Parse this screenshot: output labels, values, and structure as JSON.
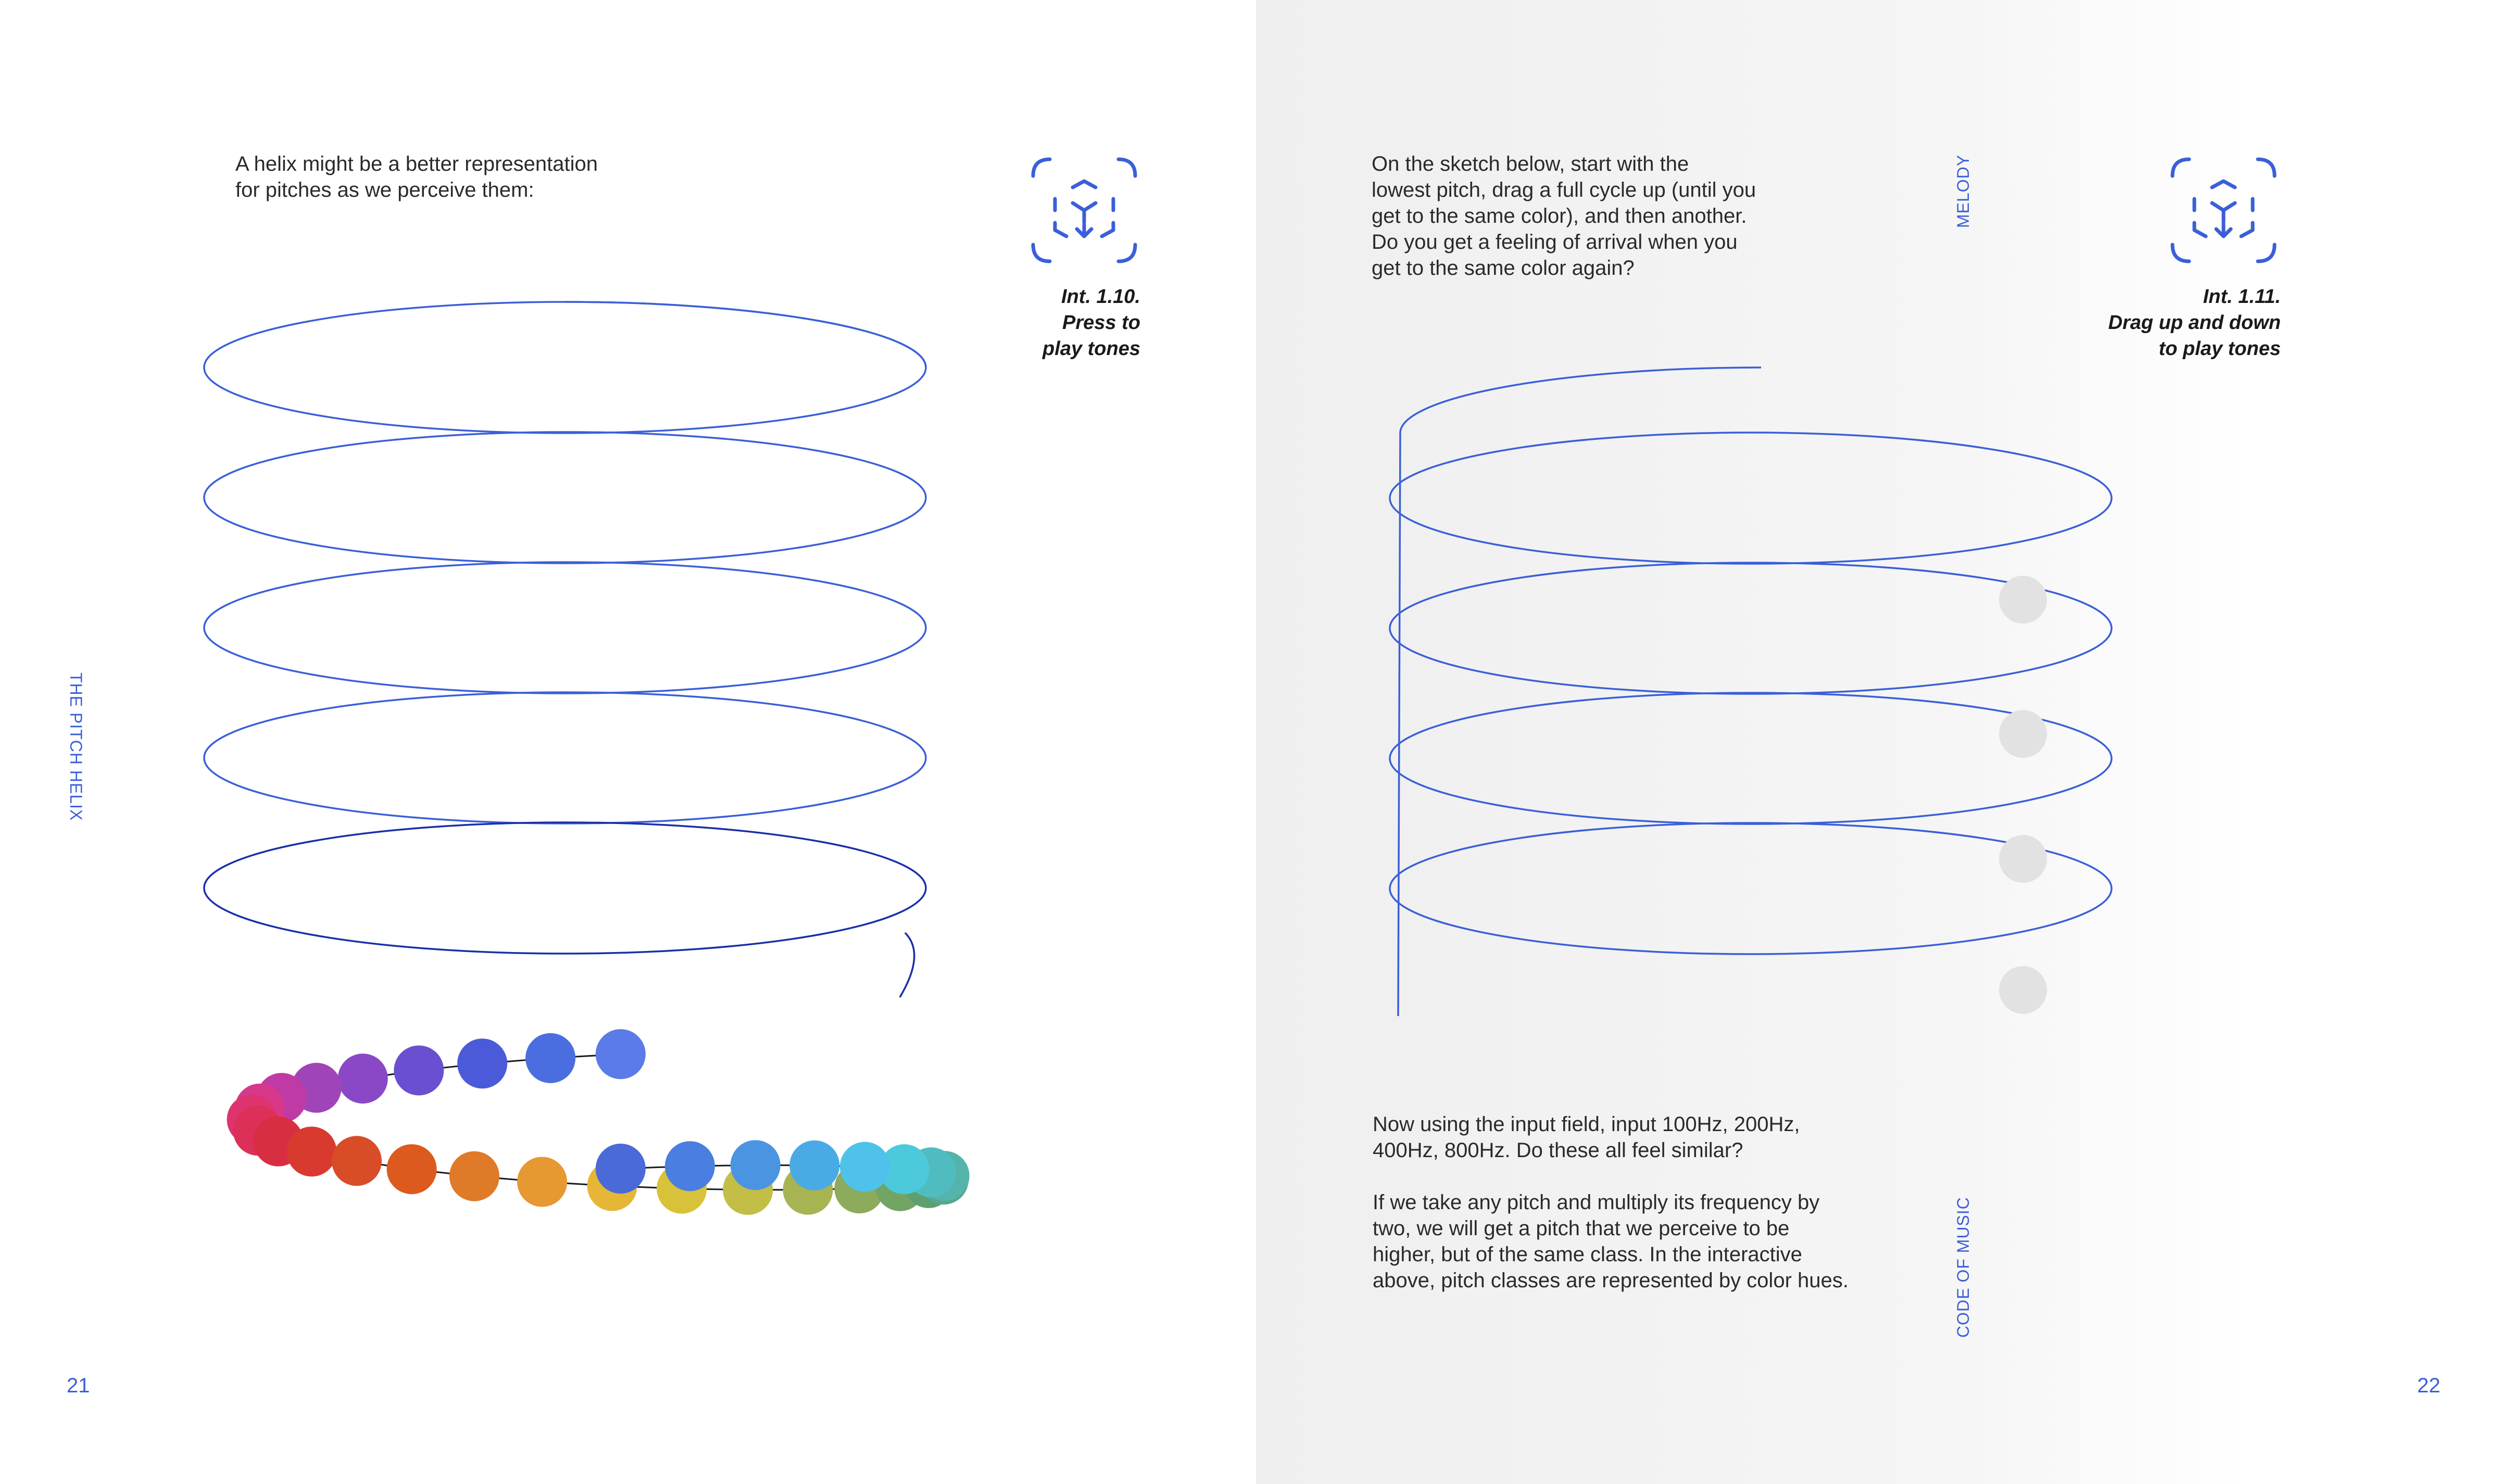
{
  "left_page": {
    "running_title": "THE PITCH HELIX",
    "page_number": "21",
    "intro_lines": [
      "A helix might be a better representation",
      "for pitches as we perceive them:"
    ],
    "caption_lines": [
      "Int. 1.10.",
      "Press to",
      "play tones"
    ],
    "icon": "interactive-cube-icon",
    "helix": {
      "turns": 6,
      "stroke_color": "#3a5fd8",
      "bottom_turn_color": "#1a2fa8"
    },
    "tone_beads": [
      {
        "color": "#5a7be8"
      },
      {
        "color": "#4a6ee0"
      },
      {
        "color": "#4a5ad8"
      },
      {
        "color": "#6a4fd0"
      },
      {
        "color": "#8a48c6"
      },
      {
        "color": "#a045b8"
      },
      {
        "color": "#c03aa6"
      },
      {
        "color": "#d8388a"
      },
      {
        "color": "#dd3470"
      },
      {
        "color": "#dc3058"
      },
      {
        "color": "#d82e42"
      },
      {
        "color": "#d83a30"
      },
      {
        "color": "#d84c28"
      },
      {
        "color": "#dd5a1e"
      },
      {
        "color": "#df7a28"
      },
      {
        "color": "#e69832"
      },
      {
        "color": "#e6b636"
      },
      {
        "color": "#d8c23a"
      },
      {
        "color": "#c2be46"
      },
      {
        "color": "#a8b452"
      },
      {
        "color": "#8cab5c"
      },
      {
        "color": "#72a466"
      },
      {
        "color": "#5e9e70"
      },
      {
        "color": "#58a68e"
      },
      {
        "color": "#54b4ac"
      },
      {
        "color": "#50bcc0"
      },
      {
        "color": "#4ccadc"
      },
      {
        "color": "#4ec2ea"
      },
      {
        "color": "#4aaae6"
      },
      {
        "color": "#4a94e2"
      },
      {
        "color": "#4a7ee0"
      },
      {
        "color": "#4a6ad8"
      }
    ]
  },
  "right_page": {
    "running_title_top": "MELODY",
    "running_title_bottom": "CODE OF MUSIC",
    "page_number": "22",
    "instruction_lines": [
      "On the sketch below, start with the",
      "lowest pitch, drag a full cycle up (until you",
      "get to the same color), and then another.",
      "Do you get a feeling of arrival when you",
      "get to the same color again?"
    ],
    "caption_lines": [
      "Int. 1.11.",
      "Drag up and down",
      "to play tones"
    ],
    "icon": "interactive-cube-icon",
    "helix": {
      "turns": 5,
      "stroke_color": "#3a5fd8",
      "marker_color": "#e2e2e2"
    },
    "paragraph_1_lines": [
      "Now using the input field, input 100Hz, 200Hz,",
      "400Hz, 800Hz. Do these all feel similar?"
    ],
    "paragraph_2_lines": [
      "If we take any pitch and multiply its frequency by",
      "two, we will get a pitch that we perceive to be",
      "higher, but of the same class. In the interactive",
      "above, pitch classes are represented by color hues."
    ]
  }
}
